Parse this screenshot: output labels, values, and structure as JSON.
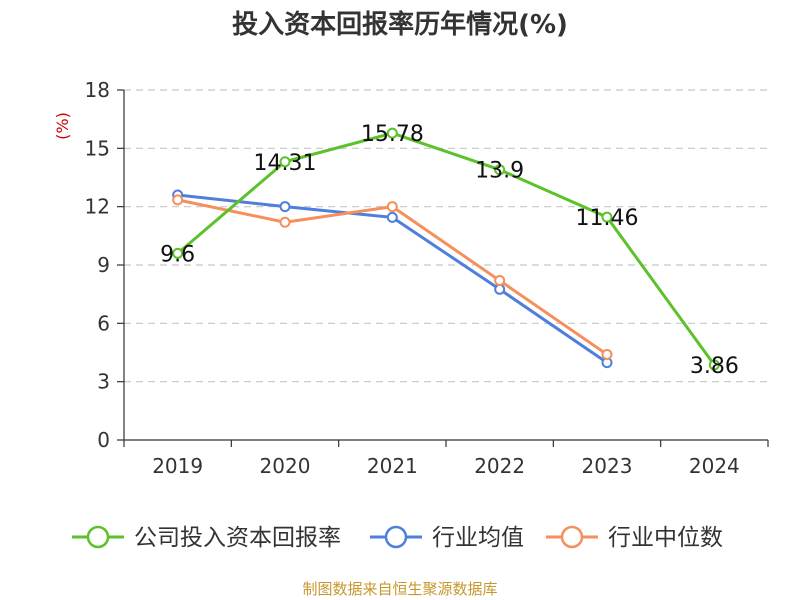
{
  "colors": {
    "company": "#5cc12a",
    "industry_avg": "#4f7fdc",
    "industry_median": "#f58f5c",
    "axis": "#333333",
    "grid": "#c8c8c8",
    "ylabel": "#cc0000",
    "source": "#c8962e"
  },
  "source_note": "制图数据来自恒生聚源数据库",
  "chart_data": {
    "type": "line",
    "title": "投入资本回报率历年情况(%)",
    "xlabel": "",
    "ylabel": "(%)",
    "categories": [
      "2019",
      "2020",
      "2021",
      "2022",
      "2023",
      "2024"
    ],
    "ylim": [
      0,
      18
    ],
    "yticks": [
      0,
      3,
      6,
      9,
      12,
      15,
      18
    ],
    "grid": true,
    "legend_position": "bottom",
    "series": [
      {
        "name": "公司投入资本回报率",
        "values": [
          9.6,
          14.31,
          15.78,
          13.9,
          11.46,
          3.86
        ],
        "labels": [
          "9.6",
          "14.31",
          "15.78",
          "13.9",
          "11.46",
          "3.86"
        ],
        "color_key": "company"
      },
      {
        "name": "行业均值",
        "values": [
          12.6,
          12.0,
          11.45,
          7.75,
          3.98,
          null
        ],
        "labels": null,
        "color_key": "industry_avg"
      },
      {
        "name": "行业中位数",
        "values": [
          12.35,
          11.2,
          12.0,
          8.2,
          4.4,
          null
        ],
        "labels": null,
        "color_key": "industry_median"
      }
    ]
  }
}
